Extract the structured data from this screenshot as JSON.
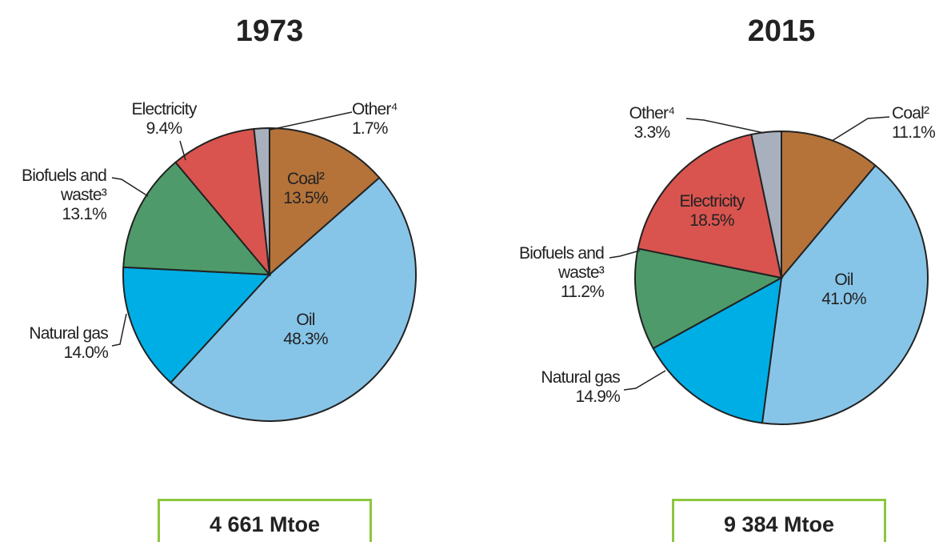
{
  "chart_data": [
    {
      "type": "pie",
      "title": "1973",
      "categories": [
        "Coal²",
        "Oil",
        "Natural gas",
        "Biofuels and waste³",
        "Electricity",
        "Other⁴"
      ],
      "values": [
        13.5,
        48.3,
        14.0,
        13.1,
        9.4,
        1.7
      ],
      "value_labels": [
        "13.5%",
        "48.3%",
        "14.0%",
        "13.1%",
        "9.4%",
        "1.7%"
      ],
      "colors": [
        "#b5733a",
        "#87c5e8",
        "#00aee6",
        "#4f9a6a",
        "#d9544f",
        "#a8b0bd"
      ],
      "total": "4 661 Mtoe"
    },
    {
      "type": "pie",
      "title": "2015",
      "categories": [
        "Coal²",
        "Oil",
        "Natural gas",
        "Biofuels and waste³",
        "Electricity",
        "Other⁴"
      ],
      "values": [
        11.1,
        41.0,
        14.9,
        11.2,
        18.5,
        3.3
      ],
      "value_labels": [
        "11.1%",
        "41.0%",
        "14.9%",
        "11.2%",
        "18.5%",
        "3.3%"
      ],
      "colors": [
        "#b5733a",
        "#87c5e8",
        "#00aee6",
        "#4f9a6a",
        "#d9544f",
        "#a8b0bd"
      ],
      "total": "9 384 Mtoe"
    }
  ]
}
